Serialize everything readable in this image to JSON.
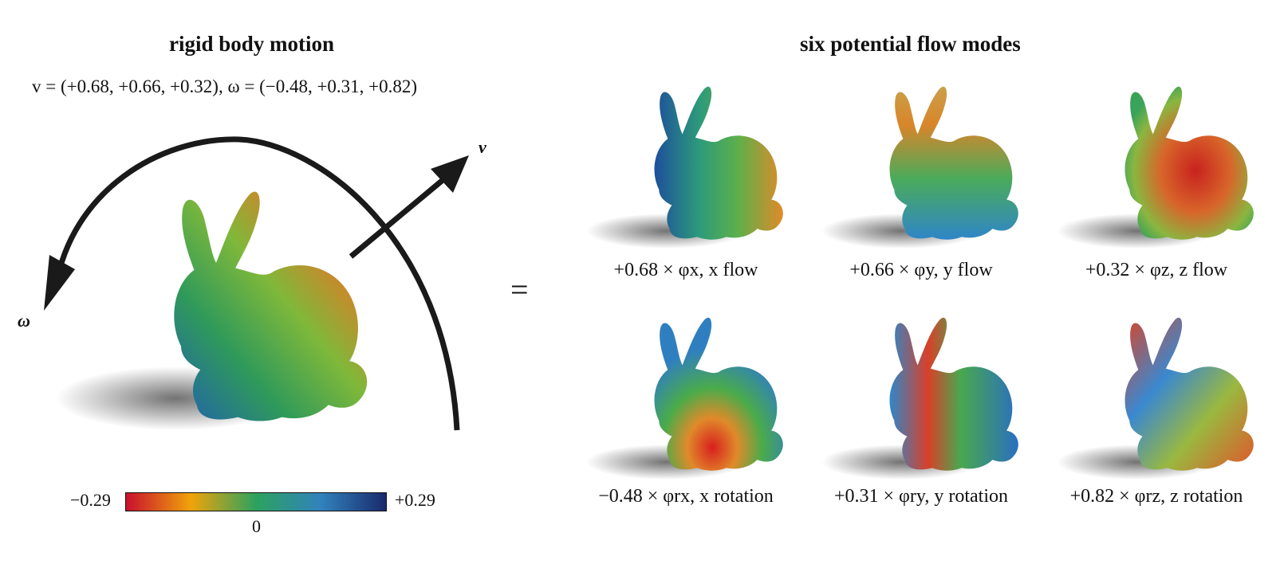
{
  "left_panel": {
    "title": "rigid body motion",
    "motion_equation": "v = (+0.68, +0.66, +0.32),  ω = (−0.48, +0.31, +0.82)",
    "arrow_labels": {
      "velocity": "v",
      "angular": "ω"
    }
  },
  "equals_sign": "=",
  "right_panel": {
    "title": "six potential flow modes",
    "modes": [
      {
        "caption": "+0.68 × φx, x flow"
      },
      {
        "caption": "+0.66 × φy, y flow"
      },
      {
        "caption": "+0.32 × φz, z flow"
      },
      {
        "caption": "−0.48 × φrx, x rotation"
      },
      {
        "caption": "+0.31 × φry, y rotation"
      },
      {
        "caption": "+0.82 × φrz, z rotation"
      }
    ]
  },
  "colorbar": {
    "min_label": "−0.29",
    "max_label": "+0.29",
    "center_label": "0",
    "colors": [
      "#c8102e",
      "#f0a30a",
      "#2ca25f",
      "#3182bd",
      "#1a2a6c"
    ]
  }
}
